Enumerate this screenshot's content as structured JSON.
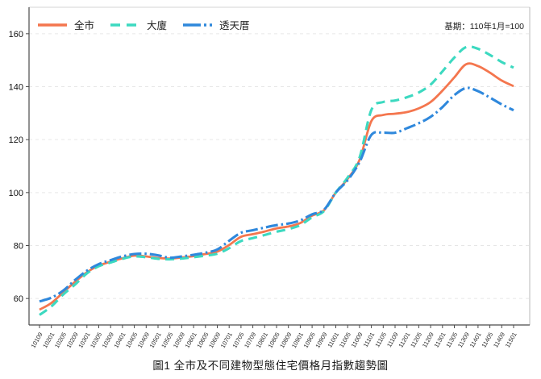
{
  "base_note": "基期：110年1月=100",
  "caption": "圖1 全市及不同建物型態住宅價格月指數趨勢圖",
  "chart_data": {
    "type": "line",
    "title": "圖1 全市及不同建物型態住宅價格月指數趨勢圖",
    "base_note": "基期：110年1月=100",
    "xlabel": "",
    "ylabel": "",
    "ylim": [
      50,
      170
    ],
    "yticks": [
      60,
      80,
      100,
      120,
      140,
      160
    ],
    "grid": "horizontal-dashed",
    "legend_position": "top-left",
    "x": [
      "10109",
      "10201",
      "10205",
      "10209",
      "10301",
      "10305",
      "10309",
      "10401",
      "10405",
      "10409",
      "10501",
      "10505",
      "10509",
      "10601",
      "10605",
      "10609",
      "10701",
      "10705",
      "10709",
      "10801",
      "10805",
      "10809",
      "10901",
      "10905",
      "10909",
      "11001",
      "11005",
      "11009",
      "11101",
      "11105",
      "11109",
      "11201",
      "11205",
      "11209",
      "11301",
      "11305",
      "11309",
      "11401",
      "11405",
      "11409",
      "11501"
    ],
    "series": [
      {
        "name": "全市",
        "color": "#f4764e",
        "style": "solid",
        "values": [
          55.8,
          58.3,
          62.3,
          66.3,
          69.9,
          72.4,
          73.9,
          75.2,
          76.2,
          75.9,
          75.3,
          75.1,
          75.5,
          76.0,
          76.8,
          77.7,
          80.2,
          83.3,
          84.3,
          85.3,
          86.5,
          87.2,
          88.5,
          91.3,
          93.3,
          100.0,
          105.2,
          112.3,
          127.0,
          129.3,
          129.8,
          130.4,
          131.8,
          134.2,
          138.5,
          143.5,
          148.5,
          147.8,
          145.3,
          142.3,
          140.2
        ]
      },
      {
        "name": "大廈",
        "color": "#3cd9c0",
        "style": "dashed",
        "values": [
          53.8,
          57.0,
          61.5,
          65.3,
          69.5,
          72.2,
          73.6,
          75.0,
          75.9,
          75.6,
          75.0,
          74.8,
          75.1,
          75.6,
          76.2,
          76.9,
          79.0,
          81.7,
          82.8,
          84.0,
          85.2,
          86.2,
          87.7,
          90.7,
          93.0,
          100.0,
          105.7,
          113.2,
          131.2,
          134.2,
          134.8,
          136.0,
          137.8,
          140.8,
          145.8,
          151.0,
          155.0,
          154.3,
          152.0,
          149.3,
          147.2
        ]
      },
      {
        "name": "透天厝",
        "color": "#2f88dc",
        "style": "dashdot",
        "values": [
          58.9,
          60.3,
          63.0,
          67.0,
          70.5,
          73.0,
          74.5,
          75.9,
          76.8,
          76.9,
          76.3,
          75.4,
          75.9,
          76.5,
          77.3,
          78.5,
          81.8,
          84.8,
          85.8,
          86.8,
          87.7,
          88.3,
          89.5,
          91.8,
          93.5,
          100.0,
          104.7,
          111.5,
          121.8,
          122.6,
          122.6,
          124.3,
          126.2,
          128.6,
          132.3,
          136.8,
          139.5,
          138.3,
          135.9,
          133.3,
          131.1
        ]
      }
    ]
  }
}
